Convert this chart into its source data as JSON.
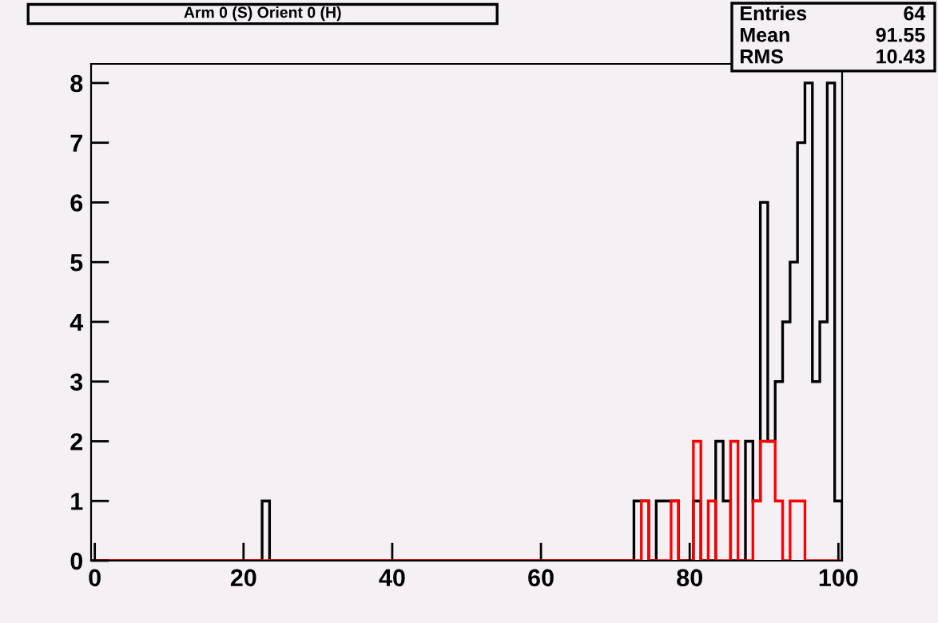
{
  "chart_data": {
    "type": "histogram",
    "title": "Arm 0 (S) Orient 0 (H)",
    "annotations": [
      "Entries 64",
      "Mean 91.55",
      "RMS 10.43"
    ],
    "bins": [
      -0.5,
      0.5,
      1.5,
      2.5,
      3.5,
      4.5,
      5.5,
      6.5,
      7.5,
      8.5,
      9.5,
      10.5,
      11.5,
      12.5,
      13.5,
      14.5,
      15.5,
      16.5,
      17.5,
      18.5,
      19.5,
      20.5,
      21.5,
      22.5,
      23.5,
      24.5,
      25.5,
      26.5,
      27.5,
      28.5,
      29.5,
      30.5,
      31.5,
      32.5,
      33.5,
      34.5,
      35.5,
      36.5,
      37.5,
      38.5,
      39.5,
      40.5,
      41.5,
      42.5,
      43.5,
      44.5,
      45.5,
      46.5,
      47.5,
      48.5,
      49.5,
      50.5,
      51.5,
      52.5,
      53.5,
      54.5,
      55.5,
      56.5,
      57.5,
      58.5,
      59.5,
      60.5,
      61.5,
      62.5,
      63.5,
      64.5,
      65.5,
      66.5,
      67.5,
      68.5,
      69.5,
      70.5,
      71.5,
      72.5,
      73.5,
      74.5,
      75.5,
      76.5,
      77.5,
      78.5,
      79.5,
      80.5,
      81.5,
      82.5,
      83.5,
      84.5,
      85.5,
      86.5,
      87.5,
      88.5,
      89.5,
      90.5,
      91.5,
      92.5,
      93.5,
      94.5,
      95.5,
      96.5,
      97.5,
      98.5,
      99.5,
      100.5
    ],
    "series": [
      {
        "color": "#000000",
        "values": [
          0,
          0,
          0,
          0,
          0,
          0,
          0,
          0,
          0,
          0,
          0,
          0,
          0,
          0,
          0,
          0,
          0,
          0,
          0,
          0,
          0,
          0,
          0,
          1,
          0,
          0,
          0,
          0,
          0,
          0,
          0,
          0,
          0,
          0,
          0,
          0,
          0,
          0,
          0,
          0,
          0,
          0,
          0,
          0,
          0,
          0,
          0,
          0,
          0,
          0,
          0,
          0,
          0,
          0,
          0,
          0,
          0,
          0,
          0,
          0,
          0,
          0,
          0,
          0,
          0,
          0,
          0,
          0,
          0,
          0,
          0,
          0,
          0,
          1,
          1,
          0,
          1,
          1,
          1,
          0,
          0,
          1,
          0,
          0,
          2,
          1,
          0,
          0,
          2,
          1,
          6,
          2,
          3,
          4,
          5,
          7,
          8,
          3,
          4,
          8,
          1
        ]
      },
      {
        "color": "#ff0000",
        "values": [
          0,
          0,
          0,
          0,
          0,
          0,
          0,
          0,
          0,
          0,
          0,
          0,
          0,
          0,
          0,
          0,
          0,
          0,
          0,
          0,
          0,
          0,
          0,
          0,
          0,
          0,
          0,
          0,
          0,
          0,
          0,
          0,
          0,
          0,
          0,
          0,
          0,
          0,
          0,
          0,
          0,
          0,
          0,
          0,
          0,
          0,
          0,
          0,
          0,
          0,
          0,
          0,
          0,
          0,
          0,
          0,
          0,
          0,
          0,
          0,
          0,
          0,
          0,
          0,
          0,
          0,
          0,
          0,
          0,
          0,
          0,
          0,
          0,
          0,
          1,
          0,
          0,
          0,
          1,
          0,
          0,
          2,
          0,
          1,
          0,
          0,
          2,
          0,
          0,
          1,
          2,
          2,
          1,
          0,
          1,
          1,
          0,
          0,
          0,
          0,
          0
        ]
      }
    ],
    "xlim": [
      -0.5,
      100.5
    ],
    "ylim": [
      0,
      8.32
    ],
    "xticks": [
      0,
      20,
      40,
      60,
      80,
      100
    ],
    "yticks": [
      0,
      1,
      2,
      3,
      4,
      5,
      6,
      7,
      8
    ],
    "grid": false,
    "legend": false
  }
}
